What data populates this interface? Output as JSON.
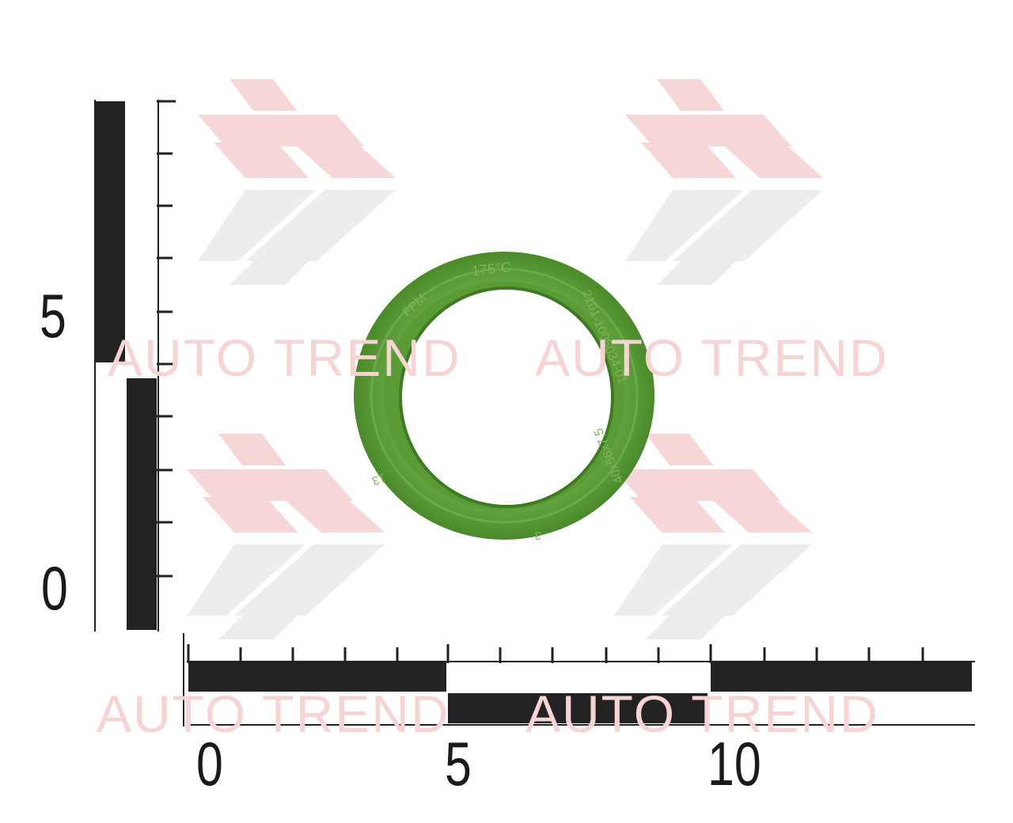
{
  "watermark": {
    "text": "AUTO TREND",
    "color": "#f7d4d4",
    "logo_red": "#f6d6d6",
    "logo_gray": "#ededed"
  },
  "vertical_scale": {
    "labels": [
      "5",
      "0"
    ]
  },
  "horizontal_scale": {
    "labels": [
      "0",
      "5",
      "10"
    ]
  },
  "seal": {
    "color": "#5f9e3c",
    "markings": [
      "175°C",
      "FPM",
      "2101-1005034-01",
      "40x56x7,5",
      "13",
      "3"
    ]
  }
}
